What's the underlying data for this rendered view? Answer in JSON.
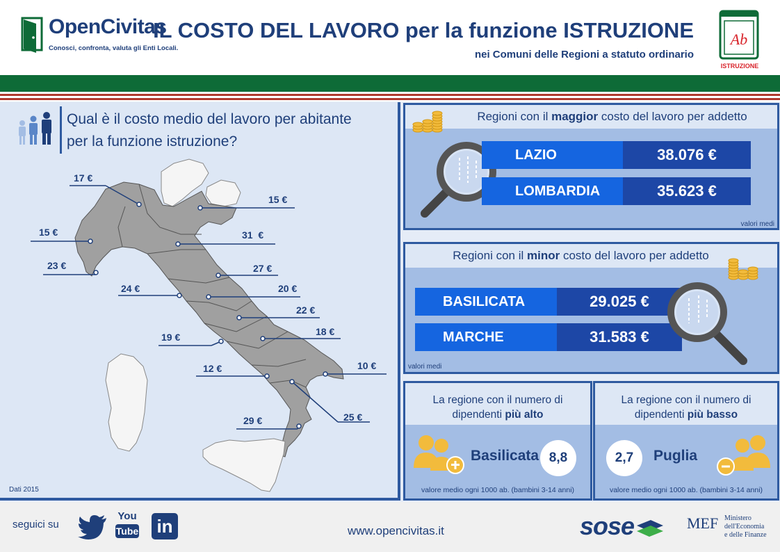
{
  "header": {
    "logo_name": "OpenCivitas",
    "logo_tagline": "Conosci, confronta, valuta gli Enti Locali.",
    "title": "IL COSTO DEL LAVORO per la funzione ISTRUZIONE",
    "subtitle": "nei Comuni delle Regioni a statuto ordinario",
    "badge_text": "Ab",
    "badge_label": "ISTRUZIONE"
  },
  "left": {
    "question_line1": "Qual è il costo medio del lavoro per abitante",
    "question_line2": "per la funzione istruzione?",
    "source": "Dati 2015",
    "map_labels": [
      {
        "region": "Valle d'Aosta",
        "value": "23 €"
      },
      {
        "region": "Piemonte",
        "value": "15 €"
      },
      {
        "region": "Lombardia",
        "value": "17 €"
      },
      {
        "region": "Veneto",
        "value": "15 €"
      },
      {
        "region": "Emilia-Romagna",
        "value": "31  €"
      },
      {
        "region": "Marche",
        "value": "27 €"
      },
      {
        "region": "Toscana",
        "value": "24 €"
      },
      {
        "region": "Umbria",
        "value": "20 €"
      },
      {
        "region": "Abruzzo",
        "value": "22 €"
      },
      {
        "region": "Molise",
        "value": "18 €"
      },
      {
        "region": "Lazio",
        "value": "19 €"
      },
      {
        "region": "Puglia",
        "value": "10 €"
      },
      {
        "region": "Campania",
        "value": "12 €"
      },
      {
        "region": "Basilicata",
        "value": "25 €"
      },
      {
        "region": "Calabria",
        "value": "29 €"
      }
    ]
  },
  "top_panel": {
    "head_pre": "Regioni con il ",
    "head_bold": "maggior",
    "head_post": " costo del lavoro per addetto",
    "rows": [
      {
        "name": "LAZIO",
        "value": "38.076 €"
      },
      {
        "name": "LOMBARDIA",
        "value": "35.623 €"
      }
    ],
    "note": "valori medi"
  },
  "mid_panel": {
    "head_pre": "Regioni con il ",
    "head_bold": "minor",
    "head_post": " costo del lavoro per addetto",
    "rows": [
      {
        "name": "BASILICATA",
        "value": "29.025 €"
      },
      {
        "name": "MARCHE",
        "value": "31.583 €"
      }
    ],
    "note": "valori medi"
  },
  "high_panel": {
    "head_line1": "La regione con il numero di",
    "head_line2_pre": "dipendenti ",
    "head_line2_bold": "più alto",
    "region": "Basilicata",
    "value": "8,8",
    "note": "valore medio ogni 1000 ab. (bambini 3-14 anni)"
  },
  "low_panel": {
    "head_line1": "La regione con il numero di",
    "head_line2_pre": "dipendenti ",
    "head_line2_bold": "più basso",
    "region": "Puglia",
    "value": "2,7",
    "note": "valore medio ogni 1000 ab. (bambini 3-14 anni)"
  },
  "footer": {
    "follow": "seguici su",
    "youtube_top": "You",
    "youtube_bottom": "Tube",
    "linkedin": "in",
    "website": "www.opencivitas.it",
    "sose": "sose",
    "mef": "MEF",
    "mef_line1": "Ministero",
    "mef_line2": "dell'Economia",
    "mef_line3": "e delle Finanze"
  },
  "colors": {
    "navy": "#1f3f7a",
    "accent_blue": "#1565e0",
    "dark_blue": "#1d47a6",
    "panel_blue": "#a3bde4",
    "green": "#0e6b37",
    "red": "#b0392d",
    "gold": "#f2bb3c"
  }
}
